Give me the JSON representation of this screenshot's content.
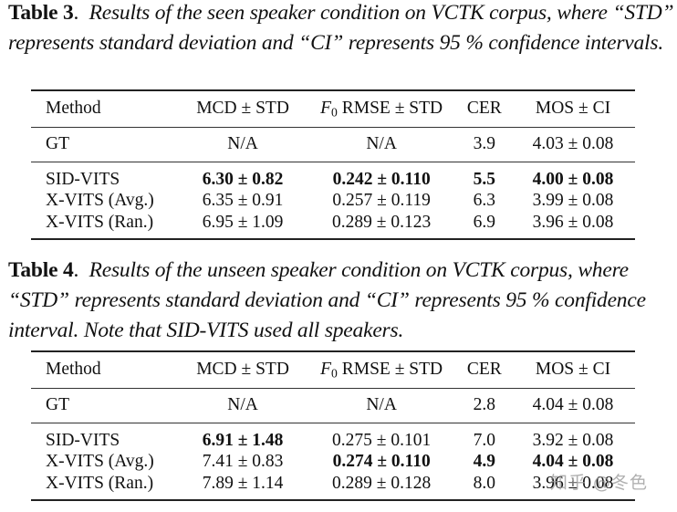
{
  "tables": [
    {
      "label": "Table 3",
      "caption": "Results of the seen speaker condition on VCTK corpus, where “STD” represents standard deviation and “CI” represents 95 % confidence intervals.",
      "headers": {
        "method": "Method",
        "mcd": "MCD ± STD",
        "f0_symbol": "F",
        "f0_sub": "0",
        "f0_rest": " RMSE ± STD",
        "cer": "CER",
        "mos": "MOS ± CI"
      },
      "gt": {
        "method": "GT",
        "mcd": "N/A",
        "f0": "N/A",
        "cer": "3.9",
        "mos": "4.03 ± 0.08"
      },
      "rows": [
        {
          "method": "SID-VITS",
          "mcd": "6.30 ± 0.82",
          "f0": "0.242 ± 0.110",
          "cer": "5.5",
          "mos": "4.00 ± 0.08",
          "bold": [
            "mcd",
            "f0",
            "cer",
            "mos"
          ]
        },
        {
          "method": "X-VITS (Avg.)",
          "mcd": "6.35 ± 0.91",
          "f0": "0.257 ± 0.119",
          "cer": "6.3",
          "mos": "3.99 ± 0.08",
          "bold": []
        },
        {
          "method": "X-VITS (Ran.)",
          "mcd": "6.95 ± 1.09",
          "f0": "0.289 ± 0.123",
          "cer": "6.9",
          "mos": "3.96 ± 0.08",
          "bold": []
        }
      ]
    },
    {
      "label": "Table 4",
      "caption": "Results of the unseen speaker condition on VCTK corpus, where “STD” represents standard deviation and “CI” represents 95 % confidence interval. Note that SID-VITS used all speakers.",
      "headers": {
        "method": "Method",
        "mcd": "MCD ± STD",
        "f0_symbol": "F",
        "f0_sub": "0",
        "f0_rest": " RMSE ± STD",
        "cer": "CER",
        "mos": "MOS ± CI"
      },
      "gt": {
        "method": "GT",
        "mcd": "N/A",
        "f0": "N/A",
        "cer": "2.8",
        "mos": "4.04 ± 0.08"
      },
      "rows": [
        {
          "method": "SID-VITS",
          "mcd": "6.91 ± 1.48",
          "f0": "0.275 ± 0.101",
          "cer": "7.0",
          "mos": "3.92 ± 0.08",
          "bold": [
            "mcd"
          ]
        },
        {
          "method": "X-VITS (Avg.)",
          "mcd": "7.41 ± 0.83",
          "f0": "0.274 ± 0.110",
          "cer": "4.9",
          "mos": "4.04 ± 0.08",
          "bold": [
            "f0",
            "cer",
            "mos"
          ]
        },
        {
          "method": "X-VITS (Ran.)",
          "mcd": "7.89 ± 1.14",
          "f0": "0.289 ± 0.128",
          "cer": "8.0",
          "mos": "3.96 ± 0.08",
          "bold": []
        }
      ]
    }
  ],
  "watermark": "知乎 @冬色"
}
